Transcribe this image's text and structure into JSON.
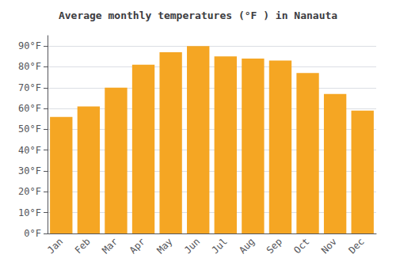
{
  "chart_data": {
    "type": "bar",
    "title": "Average monthly temperatures (°F ) in Nanauta",
    "categories": [
      "Jan",
      "Feb",
      "Mar",
      "Apr",
      "May",
      "Jun",
      "Jul",
      "Aug",
      "Sep",
      "Oct",
      "Nov",
      "Dec"
    ],
    "values": [
      56,
      61,
      70,
      81,
      87,
      90,
      85,
      84,
      83,
      77,
      67,
      59
    ],
    "color": "#F5A623",
    "ylim": [
      0,
      95
    ],
    "yticks": [
      {
        "value": 0,
        "label": "0°F"
      },
      {
        "value": 10,
        "label": "10°F"
      },
      {
        "value": 20,
        "label": "20°F"
      },
      {
        "value": 30,
        "label": "30°F"
      },
      {
        "value": 40,
        "label": "40°F"
      },
      {
        "value": 50,
        "label": "50°F"
      },
      {
        "value": 60,
        "label": "60°F"
      },
      {
        "value": 70,
        "label": "70°F"
      },
      {
        "value": 80,
        "label": "80°F"
      },
      {
        "value": 90,
        "label": "90°F"
      }
    ],
    "grid": true
  }
}
